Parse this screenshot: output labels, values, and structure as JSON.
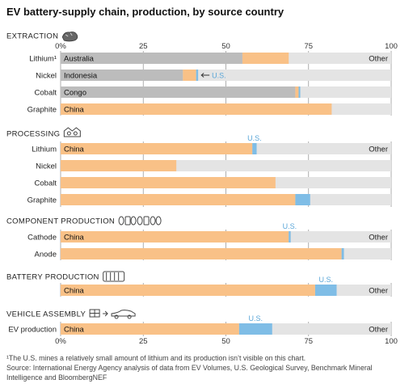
{
  "colors": {
    "lead": "#f9c187",
    "lead_gray": "#bcbcbc",
    "us": "#7fbde6",
    "us_text": "#5aa6d8",
    "other": "#e4e4e4",
    "tick_line": "#9a9a9a"
  },
  "chart_data": {
    "type": "bar",
    "title": "EV battery-supply chain, production, by source country",
    "xlim": [
      0,
      100
    ],
    "ticks": [
      "0%",
      "25",
      "50",
      "75",
      "100"
    ],
    "tick_values": [
      0,
      25,
      50,
      75,
      100
    ],
    "other_label": "Other",
    "us_label": "U.S.",
    "sections": [
      {
        "label": "EXTRACTION",
        "icon": "rock-icon",
        "rows": [
          {
            "label": "Lithium¹",
            "country": "Australia",
            "country_value": 55,
            "china_value": 14,
            "us_value": 0,
            "show_other": true
          },
          {
            "label": "Nickel",
            "country": "Indonesia",
            "country_value": 37,
            "china_value": 4,
            "us_value": 0.6,
            "us_arrow": true
          },
          {
            "label": "Cobalt",
            "country": "Congo",
            "country_value": 71,
            "china_value": 1,
            "us_value": 0.5
          },
          {
            "label": "Graphite",
            "country": "China",
            "country_value": 0,
            "china_value": 82,
            "us_value": 0
          }
        ]
      },
      {
        "label": "PROCESSING",
        "icon": "factory-icon",
        "rows": [
          {
            "label": "Lithium",
            "country": "China",
            "country_value": 0,
            "china_value": 58,
            "us_value": 1.3,
            "us_above": true,
            "show_other": true
          },
          {
            "label": "Nickel",
            "country": "",
            "country_value": 0,
            "china_value": 35,
            "us_value": 0
          },
          {
            "label": "Cobalt",
            "country": "",
            "country_value": 0,
            "china_value": 65,
            "us_value": 0
          },
          {
            "label": "Graphite",
            "country": "",
            "country_value": 0,
            "china_value": 71,
            "us_value": 4.5
          }
        ]
      },
      {
        "label": "COMPONENT PRODUCTION",
        "icon": "battery-cells-icon",
        "rows": [
          {
            "label": "Cathode",
            "country": "China",
            "country_value": 0,
            "china_value": 69,
            "us_value": 0.6,
            "us_above": true,
            "show_other": true
          },
          {
            "label": "Anode",
            "country": "",
            "country_value": 0,
            "china_value": 85,
            "us_value": 0.7
          }
        ]
      },
      {
        "label": "BATTERY PRODUCTION",
        "icon": "battery-pack-icon",
        "rows": [
          {
            "label": "",
            "country": "China",
            "country_value": 0,
            "china_value": 77,
            "us_value": 6.5,
            "us_above": true,
            "show_other": true
          }
        ]
      },
      {
        "label": "VEHICLE ASSEMBLY",
        "icon": "car-assembly-icon",
        "rows": [
          {
            "label": "EV production",
            "country": "China",
            "country_value": 0,
            "china_value": 54,
            "us_value": 10,
            "us_above": true,
            "show_other": true
          }
        ]
      }
    ]
  },
  "footnotes": {
    "line1": "¹The U.S. mines a relatively small amount of lithium and its production isn’t visible on this chart.",
    "line2": "Source: International Energy Agency analysis of data from EV Volumes, U.S. Geological Survey, Benchmark Mineral",
    "line3": "Intelligence and BloombergNEF"
  }
}
